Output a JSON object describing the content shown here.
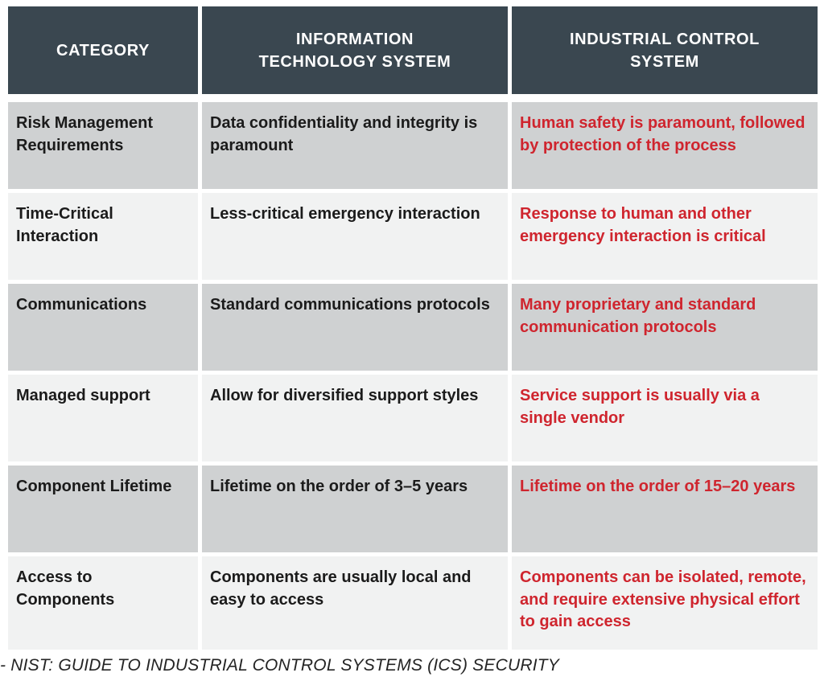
{
  "table": {
    "columns": [
      "CATEGORY",
      "INFORMATION\nTECHNOLOGY SYSTEM",
      "INDUSTRIAL CONTROL\nSYSTEM"
    ],
    "rows": [
      {
        "category": "Risk Management Requirements",
        "it": "Data confidentiality and integrity is paramount",
        "ics": "Human safety is paramount, followed by protection of the process"
      },
      {
        "category": "Time-Critical Interaction",
        "it": "Less-critical emergency interaction",
        "ics": "Response to human and other emergency interaction is critical"
      },
      {
        "category": "Communications",
        "it": "Standard communications protocols",
        "ics": "Many proprietary and standard communication protocols"
      },
      {
        "category": "Managed support",
        "it": "Allow for diversified support styles",
        "ics": "Service support is usually via a single vendor"
      },
      {
        "category": "Component Lifetime",
        "it": "Lifetime on the order of 3–5 years",
        "ics": "Lifetime on the order of 15–20 years"
      },
      {
        "category": "Access to Components",
        "it": "Components are usually local and easy to access",
        "ics": "Components can be isolated, remote, and require extensive physical effort to gain access"
      }
    ]
  },
  "footer": {
    "citation": "- NIST: GUIDE TO INDUSTRIAL CONTROL SYSTEMS (ICS) SECURITY"
  },
  "colors": {
    "header_bg": "#3a4750",
    "header_text": "#ffffff",
    "row_dark_bg": "#cfd1d2",
    "row_light_bg": "#f1f2f2",
    "body_text": "#1b1b1b",
    "ics_accent_red": "#cf252e",
    "citation_text": "#242424"
  }
}
